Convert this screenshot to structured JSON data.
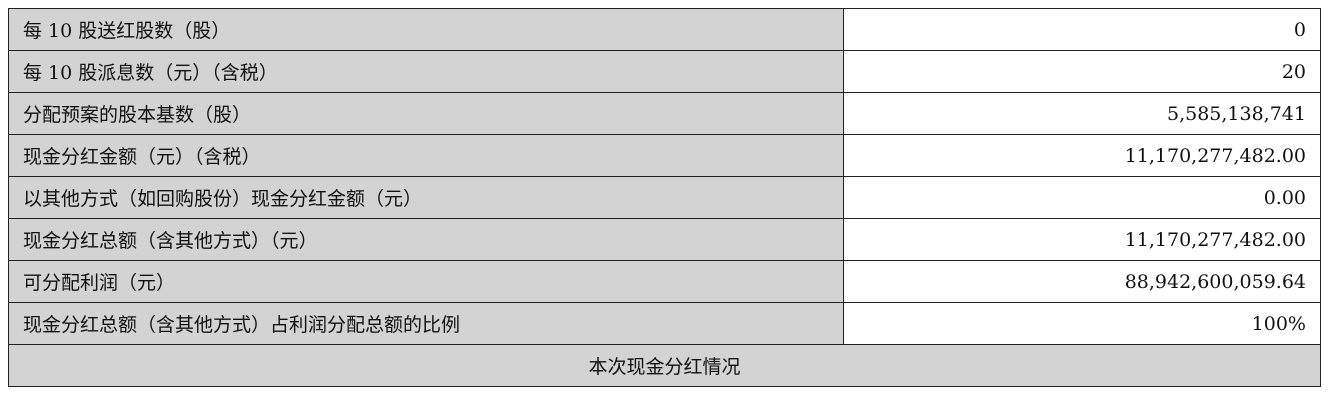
{
  "rows": [
    {
      "label": "每 10 股送红股数（股）",
      "value": "0"
    },
    {
      "label": "每 10 股派息数（元）（含税）",
      "value": "20"
    },
    {
      "label": "分配预案的股本基数（股）",
      "value": "5,585,138,741"
    },
    {
      "label": "现金分红金额（元）（含税）",
      "value": "11,170,277,482.00"
    },
    {
      "label": "以其他方式（如回购股份）现金分红金额（元）",
      "value": "0.00"
    },
    {
      "label": "现金分红总额（含其他方式）（元）",
      "value": "11,170,277,482.00"
    },
    {
      "label": "可分配利润（元）",
      "value": "88,942,600,059.64"
    },
    {
      "label": "现金分红总额（含其他方式）占利润分配总额的比例",
      "value": "100%"
    }
  ],
  "section_header": "本次现金分红情况",
  "colors": {
    "label_bg": "#d3d3d3",
    "border": "#222222"
  }
}
